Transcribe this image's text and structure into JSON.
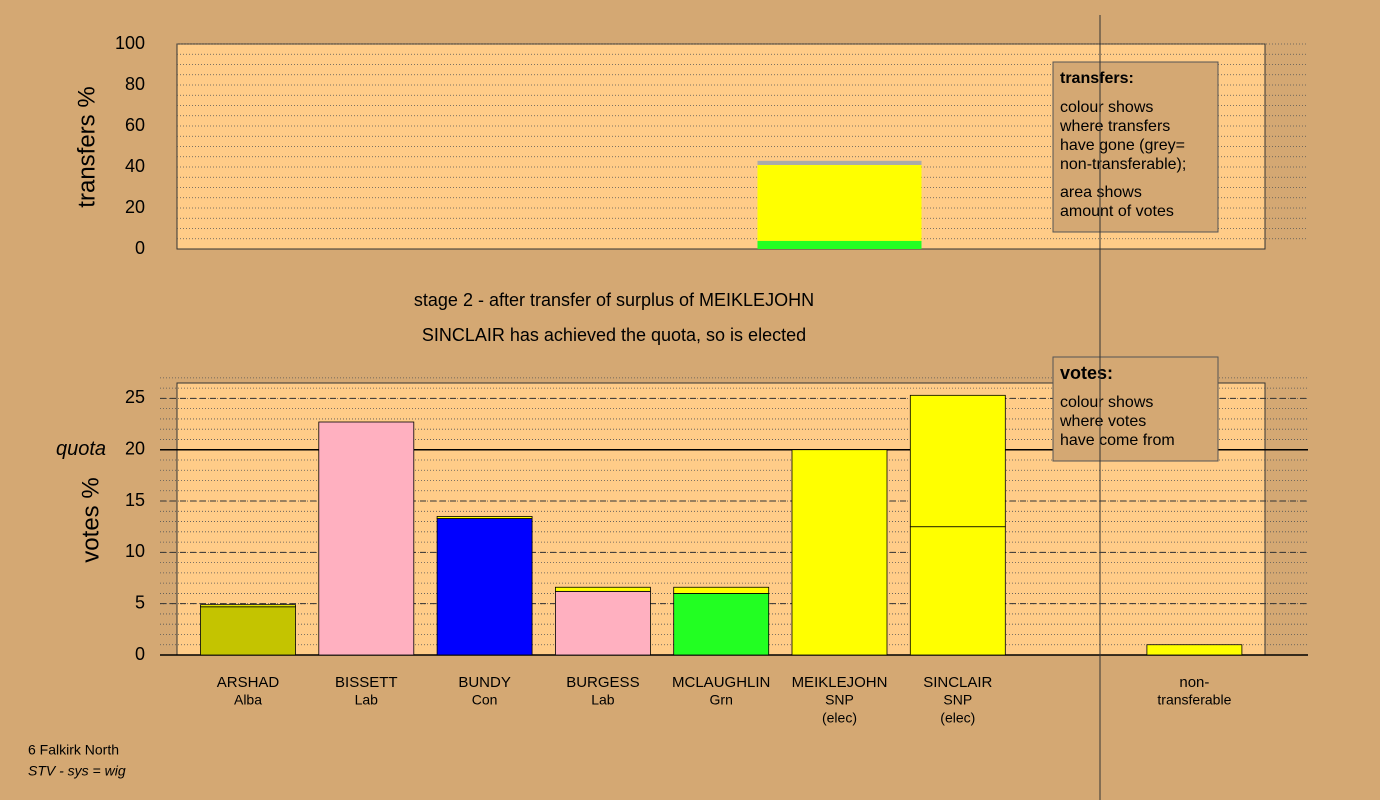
{
  "chart_data": [
    {
      "type": "bar",
      "stacked": true,
      "ylabel": "transfers %",
      "ylim": [
        0,
        100
      ],
      "yticks": [
        0,
        20,
        40,
        60,
        80,
        100
      ],
      "minor_grid_step": 5,
      "series": [
        {
          "color": "#22ff22",
          "values": [
            null,
            null,
            null,
            null,
            null,
            4,
            null,
            null,
            null
          ]
        },
        {
          "color": "#ffff00",
          "values": [
            null,
            null,
            null,
            null,
            null,
            37,
            null,
            null,
            null
          ]
        },
        {
          "color": "#aaaaaa",
          "values": [
            null,
            null,
            null,
            null,
            null,
            2,
            null,
            null,
            null
          ]
        }
      ],
      "note": {
        "title": "transfers:",
        "paragraphs": [
          [
            "colour shows",
            "where transfers",
            "have gone (grey=",
            "non-transferable);"
          ],
          [
            "area shows",
            "amount of votes"
          ]
        ]
      }
    },
    {
      "type": "bar",
      "stacked": true,
      "title": "stage 2 - after transfer of surplus of MEIKLEJOHN",
      "subtitle": "SINCLAIR has achieved the quota, so is elected",
      "ylabel": "votes %",
      "categories": [
        [
          "ARSHAD",
          "Alba"
        ],
        [
          "BISSETT",
          "Lab"
        ],
        [
          "BUNDY",
          "Con"
        ],
        [
          "BURGESS",
          "Lab"
        ],
        [
          "MCLAUGHLIN",
          "Grn"
        ],
        [
          "MEIKLEJOHN",
          "SNP",
          "(elec)"
        ],
        [
          "SINCLAIR",
          "SNP",
          "(elec)"
        ],
        null,
        [
          "non-",
          "transferable"
        ]
      ],
      "ylim": [
        0,
        26.5
      ],
      "yticks": [
        0,
        5,
        10,
        15,
        20,
        25
      ],
      "minor_grid_step": 1,
      "quota": 20,
      "quota_label": "quota",
      "series": [
        {
          "color": "#c4c400",
          "values": [
            4.7,
            null,
            null,
            null,
            null,
            null,
            null,
            null,
            null
          ]
        },
        {
          "color": "#ffb0c0",
          "values": [
            null,
            22.7,
            null,
            6.2,
            null,
            null,
            null,
            null,
            null
          ]
        },
        {
          "color": "#0000ff",
          "values": [
            null,
            null,
            13.3,
            null,
            null,
            null,
            null,
            null,
            null
          ]
        },
        {
          "color": "#22ff22",
          "values": [
            null,
            null,
            null,
            null,
            6.0,
            null,
            null,
            null,
            null
          ]
        },
        {
          "color": "#ffff00",
          "values": [
            null,
            null,
            null,
            null,
            null,
            20.0,
            12.5,
            null,
            null
          ]
        },
        {
          "color": "#ffff00",
          "values": [
            0.2,
            null,
            0.2,
            0.4,
            0.6,
            null,
            12.8,
            null,
            1.0
          ]
        }
      ],
      "note": {
        "title": "votes:",
        "paragraphs": [
          [
            "colour shows",
            "where votes",
            "have come from"
          ]
        ]
      }
    }
  ],
  "footer": {
    "line1": "6 Falkirk North",
    "line2": "STV - sys = wig"
  }
}
